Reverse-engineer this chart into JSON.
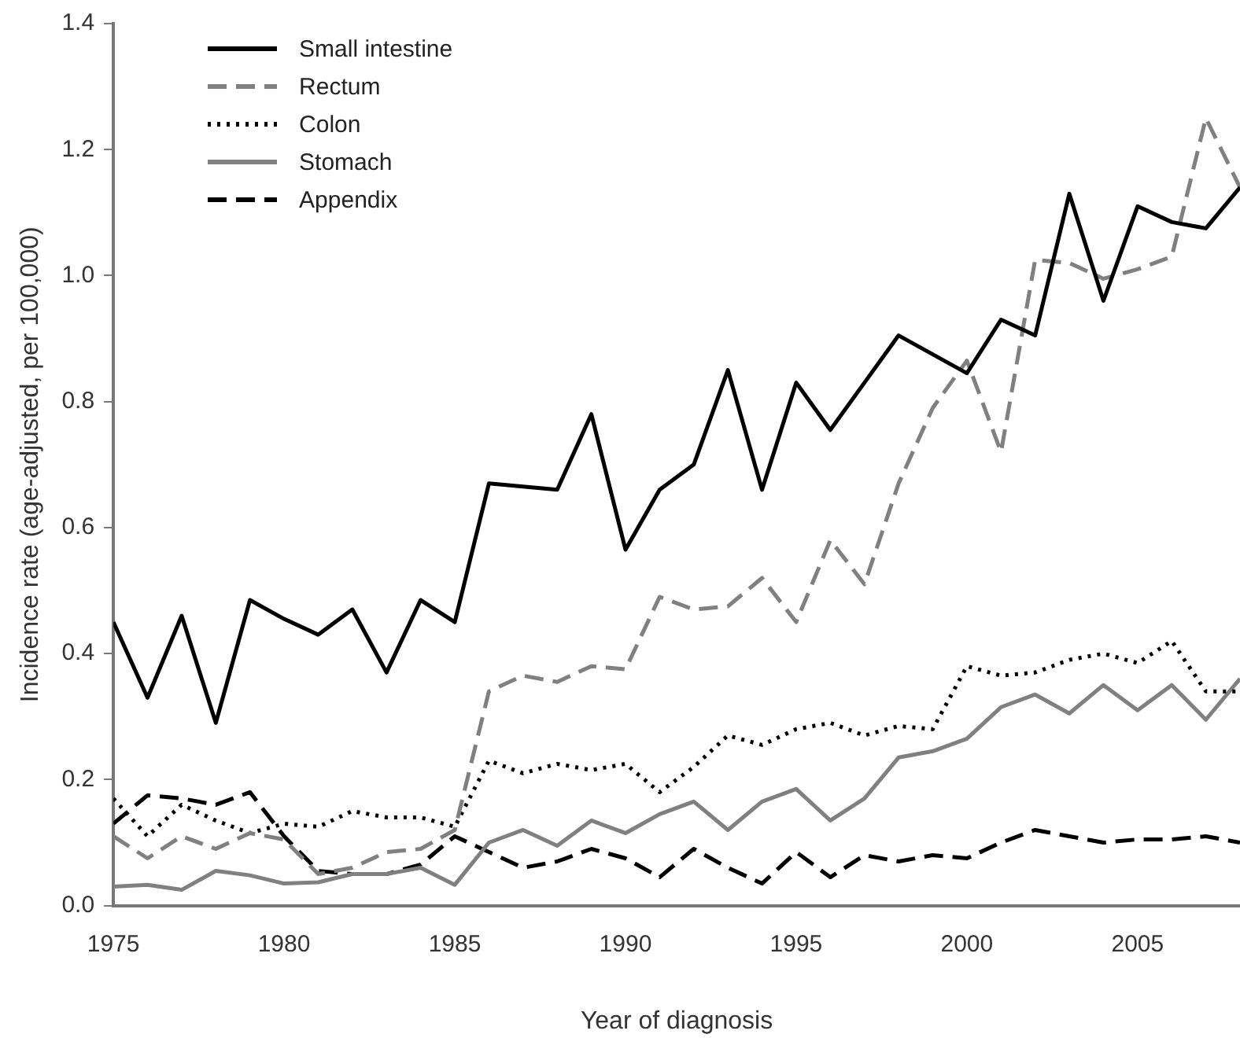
{
  "chart_data": {
    "type": "line",
    "xlabel": "Year of diagnosis",
    "ylabel": "Incidence rate (age-adjusted, per 100,000)",
    "x": [
      1975,
      1976,
      1977,
      1978,
      1979,
      1980,
      1981,
      1982,
      1983,
      1984,
      1985,
      1986,
      1987,
      1988,
      1989,
      1990,
      1991,
      1992,
      1993,
      1994,
      1995,
      1996,
      1997,
      1998,
      1999,
      2000,
      2001,
      2002,
      2003,
      2004,
      2005,
      2006,
      2007,
      2008
    ],
    "xlim": [
      1975,
      2008
    ],
    "xticks": [
      1975,
      1980,
      1985,
      1990,
      1995,
      2000,
      2005
    ],
    "ylim": [
      0,
      1.4
    ],
    "yticks": [
      {
        "value": 0,
        "label": "0.0"
      },
      {
        "value": 0.2,
        "label": "0.2"
      },
      {
        "value": 0.4,
        "label": "0.4"
      },
      {
        "value": 0.6,
        "label": "0.6"
      },
      {
        "value": 0.8,
        "label": "0.8"
      },
      {
        "value": 1,
        "label": "1.0"
      },
      {
        "value": 1.2,
        "label": "1.2"
      },
      {
        "value": 1.4,
        "label": "1.4"
      }
    ],
    "grid": false,
    "legend": "top left",
    "marker": "none",
    "series": [
      {
        "name": "Small intestine",
        "color": "#000000",
        "line_style": "solid",
        "values": [
          0.45,
          0.33,
          0.46,
          0.29,
          0.485,
          0.455,
          0.43,
          0.47,
          0.37,
          0.485,
          0.45,
          0.67,
          0.665,
          0.66,
          0.78,
          0.565,
          0.66,
          0.7,
          0.85,
          0.66,
          0.83,
          0.755,
          0.83,
          0.905,
          0.875,
          0.845,
          0.93,
          0.905,
          1.13,
          0.96,
          1.11,
          1.085,
          1.075,
          1.14
        ]
      },
      {
        "name": "Rectum",
        "color": "#808080",
        "line_style": "dashed",
        "values": [
          0.11,
          0.075,
          0.11,
          0.09,
          0.115,
          0.105,
          0.05,
          0.06,
          0.085,
          0.09,
          0.12,
          0.34,
          0.365,
          0.355,
          0.38,
          0.375,
          0.49,
          0.47,
          0.475,
          0.52,
          0.45,
          0.58,
          0.51,
          0.67,
          0.79,
          0.865,
          0.72,
          1.025,
          1.02,
          0.995,
          1.01,
          1.03,
          1.25,
          1.14
        ]
      },
      {
        "name": "Colon",
        "color": "#000000",
        "line_style": "dotted",
        "values": [
          0.17,
          0.11,
          0.16,
          0.135,
          0.115,
          0.13,
          0.125,
          0.15,
          0.14,
          0.14,
          0.125,
          0.23,
          0.21,
          0.225,
          0.215,
          0.225,
          0.18,
          0.22,
          0.27,
          0.255,
          0.28,
          0.29,
          0.27,
          0.285,
          0.28,
          0.38,
          0.365,
          0.37,
          0.39,
          0.4,
          0.385,
          0.42,
          0.34,
          0.34
        ]
      },
      {
        "name": "Stomach",
        "color": "#808080",
        "line_style": "solid",
        "values": [
          0.03,
          0.033,
          0.025,
          0.055,
          0.048,
          0.035,
          0.037,
          0.05,
          0.05,
          0.06,
          0.033,
          0.1,
          0.12,
          0.095,
          0.135,
          0.115,
          0.145,
          0.165,
          0.12,
          0.165,
          0.185,
          0.135,
          0.17,
          0.235,
          0.245,
          0.265,
          0.315,
          0.335,
          0.305,
          0.35,
          0.31,
          0.35,
          0.295,
          0.36
        ]
      },
      {
        "name": "Appendix",
        "color": "#000000",
        "line_style": "dashed",
        "values": [
          0.13,
          0.175,
          0.17,
          0.16,
          0.18,
          0.11,
          0.055,
          0.05,
          0.05,
          0.065,
          0.11,
          0.085,
          0.06,
          0.07,
          0.09,
          0.075,
          0.045,
          0.09,
          0.06,
          0.035,
          0.085,
          0.045,
          0.08,
          0.07,
          0.08,
          0.075,
          0.1,
          0.12,
          0.11,
          0.1,
          0.105,
          0.105,
          0.11,
          0.1
        ]
      }
    ]
  }
}
